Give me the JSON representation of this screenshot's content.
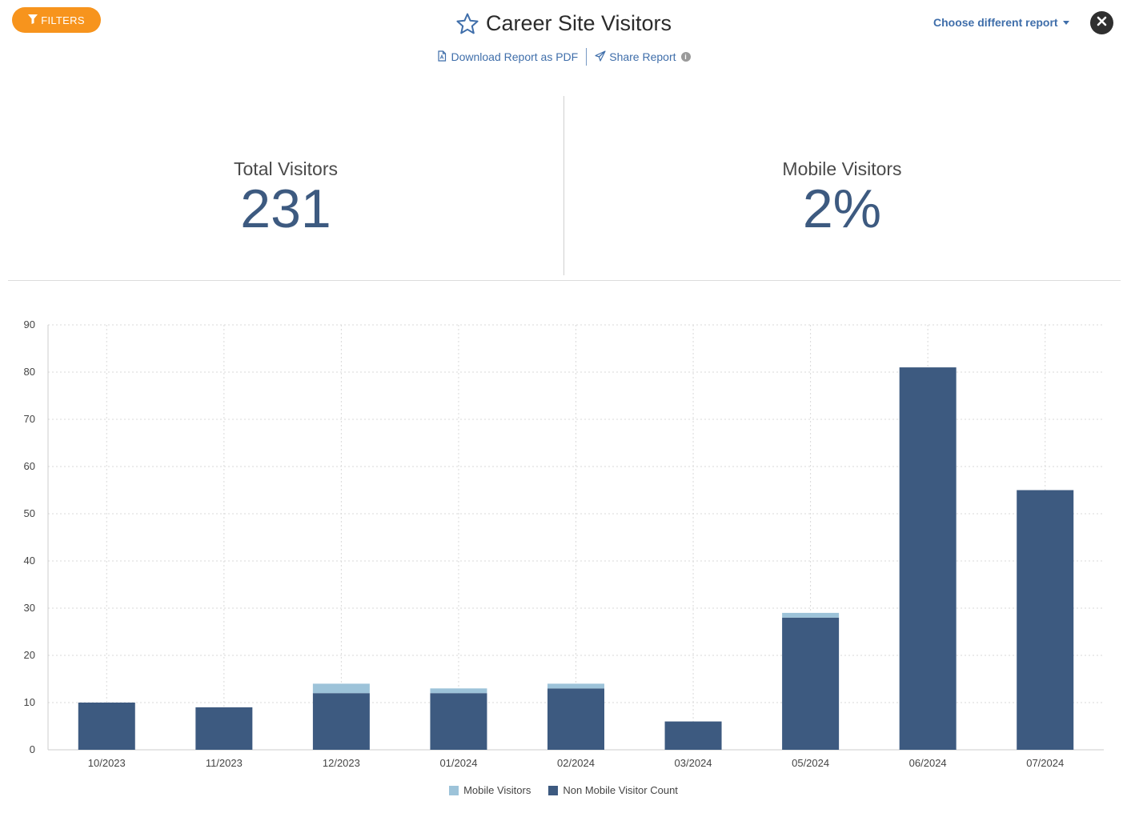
{
  "header": {
    "filters_label": "FILTERS",
    "title": "Career Site Visitors",
    "download_label": "Download Report as PDF",
    "share_label": "Share Report",
    "choose_report_label": "Choose different report"
  },
  "stats": {
    "total_label": "Total Visitors",
    "total_value": "231",
    "mobile_label": "Mobile Visitors",
    "mobile_value": "2%"
  },
  "colors": {
    "accent": "#f7941d",
    "link": "#3f6eaa",
    "mobile": "#9dc3d9",
    "non_mobile": "#3d5a80"
  },
  "chart_data": {
    "type": "bar",
    "stacked": true,
    "categories": [
      "10/2023",
      "11/2023",
      "12/2023",
      "01/2024",
      "02/2024",
      "03/2024",
      "05/2024",
      "06/2024",
      "07/2024"
    ],
    "series": [
      {
        "name": "Non Mobile Visitor Count",
        "values": [
          10,
          9,
          12,
          12,
          13,
          6,
          28,
          81,
          55
        ],
        "color": "#3d5a80"
      },
      {
        "name": "Mobile Visitors",
        "values": [
          0,
          0,
          2,
          1,
          1,
          0,
          1,
          0,
          0
        ],
        "color": "#9dc3d9"
      }
    ],
    "yticks": [
      "0",
      "10",
      "20",
      "30",
      "40",
      "50",
      "60",
      "70",
      "80",
      "90"
    ],
    "ylim": [
      0,
      90
    ],
    "grid": true,
    "legend": [
      "Mobile Visitors",
      "Non Mobile Visitor Count"
    ],
    "legend_position": "bottom"
  }
}
